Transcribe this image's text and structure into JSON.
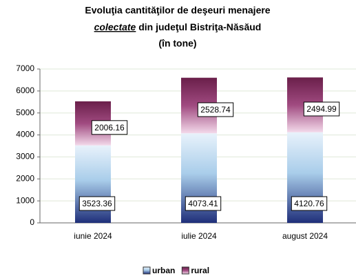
{
  "chart_data": {
    "type": "stacked_bar",
    "title": [
      "Evoluţia cantităţilor de deşeuri menajere",
      "colectate",
      "din judeţul Bistriţa-Năsăud",
      "(în tone)"
    ],
    "categories": [
      "iunie 2024",
      "iulie 2024",
      "august 2024"
    ],
    "series": [
      {
        "name": "urban",
        "color": "#1f2f7a",
        "values": [
          3523.36,
          4073.41,
          4120.76
        ]
      },
      {
        "name": "rural",
        "color": "#6a1f4a",
        "values": [
          2006.16,
          2528.74,
          2494.99
        ]
      }
    ],
    "ylim": [
      0,
      7000
    ],
    "yticks": [
      0,
      1000,
      2000,
      3000,
      4000,
      5000,
      6000,
      7000
    ],
    "grid": true,
    "legend": "bottom"
  }
}
